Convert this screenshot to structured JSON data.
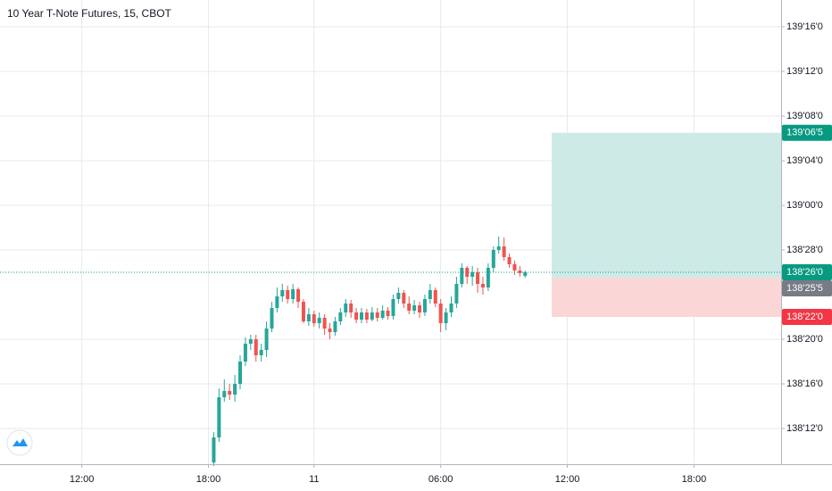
{
  "chart_data": {
    "type": "candlestick",
    "title": "10 Year T-Note Futures, 15, CBOT",
    "up_color": "#26a69a",
    "down_color": "#ef5350",
    "grid": true,
    "categories": [
      null,
      null,
      null,
      null,
      null,
      null,
      null,
      null,
      null,
      null,
      null,
      null,
      null,
      null,
      null,
      "12:00",
      null,
      null,
      null,
      null,
      null,
      null,
      null,
      null,
      null,
      null,
      null,
      null,
      null,
      null,
      null,
      null,
      null,
      null,
      null,
      null,
      null,
      null,
      null,
      "18:00",
      null,
      null,
      null,
      null,
      null,
      null,
      null,
      null,
      null,
      null,
      null,
      null,
      null,
      null,
      null,
      null,
      null,
      null,
      null,
      "11",
      null,
      null,
      null,
      null,
      null,
      null,
      null,
      null,
      null,
      null,
      null,
      null,
      null,
      null,
      null,
      null,
      null,
      null,
      null,
      null,
      null,
      null,
      null,
      "06:00",
      null,
      null,
      null,
      null,
      null,
      null,
      null,
      null,
      null,
      null,
      null,
      null,
      null,
      null,
      null,
      null,
      null,
      null,
      null,
      null,
      null,
      null,
      null,
      "12:00",
      null,
      null,
      null,
      null,
      null,
      null,
      null,
      null,
      null,
      null,
      null,
      null,
      null,
      null,
      null,
      null,
      null,
      null,
      null,
      null,
      null,
      null,
      null,
      "18:00",
      null,
      null,
      null,
      null,
      null,
      null,
      null,
      null,
      null,
      null,
      null,
      null,
      null,
      null,
      null,
      null
    ],
    "open": [
      null,
      null,
      null,
      null,
      null,
      null,
      null,
      null,
      null,
      null,
      null,
      null,
      null,
      null,
      null,
      null,
      null,
      null,
      null,
      null,
      null,
      null,
      null,
      null,
      null,
      null,
      null,
      null,
      null,
      null,
      null,
      null,
      null,
      null,
      null,
      null,
      null,
      null,
      null,
      null,
      138.28,
      138.35,
      138.4625,
      138.48,
      138.47,
      138.5,
      138.5625,
      138.6125,
      138.625,
      138.58,
      138.595,
      138.655,
      138.7125,
      138.745,
      138.7625,
      138.7375,
      138.765,
      138.73,
      138.675,
      138.695,
      138.67,
      138.685,
      138.655,
      138.645,
      138.675,
      138.7,
      138.725,
      138.7,
      138.68,
      138.7,
      138.68,
      138.7,
      138.685,
      138.705,
      138.69,
      138.7375,
      138.755,
      138.725,
      138.705,
      138.72,
      138.7,
      138.7375,
      138.7625,
      138.725,
      138.67,
      138.7,
      138.725,
      138.78,
      138.825,
      138.8,
      138.8125,
      138.78,
      138.77,
      138.825,
      138.875,
      138.885,
      138.855,
      138.835,
      138.8175,
      138.8025,
      null,
      null,
      null,
      null,
      null,
      null,
      null,
      null,
      null,
      null,
      null,
      null,
      null,
      null,
      null,
      null,
      null,
      null,
      null,
      null,
      null,
      null,
      null,
      null,
      null,
      null,
      null,
      null,
      null,
      null,
      null,
      null,
      null,
      null,
      null,
      null,
      null,
      null,
      null,
      null,
      null,
      null,
      null,
      null,
      null,
      null,
      null,
      null
    ],
    "high": [
      null,
      null,
      null,
      null,
      null,
      null,
      null,
      null,
      null,
      null,
      null,
      null,
      null,
      null,
      null,
      null,
      null,
      null,
      null,
      null,
      null,
      null,
      null,
      null,
      null,
      null,
      null,
      null,
      null,
      null,
      null,
      null,
      null,
      null,
      null,
      null,
      null,
      null,
      null,
      null,
      138.365,
      138.4875,
      138.5125,
      138.5,
      138.525,
      138.58,
      138.63,
      138.6375,
      138.6375,
      138.6125,
      138.675,
      138.73,
      138.77,
      138.78,
      138.775,
      138.78,
      138.77,
      138.7375,
      138.7125,
      138.705,
      138.7,
      138.695,
      138.67,
      138.6875,
      138.7125,
      138.7375,
      138.735,
      138.7125,
      138.7125,
      138.71,
      138.715,
      138.7125,
      138.72,
      138.715,
      138.75,
      138.77,
      138.7625,
      138.745,
      138.735,
      138.73,
      138.75,
      138.78,
      138.77,
      138.7375,
      138.7125,
      138.745,
      138.8,
      138.8375,
      138.83,
      138.83,
      138.825,
      138.8,
      138.8375,
      138.885,
      138.9125,
      138.91,
      138.865,
      138.845,
      138.83,
      138.8175,
      null,
      null,
      null,
      null,
      null,
      null,
      null,
      null,
      null,
      null,
      null,
      null,
      null,
      null,
      null,
      null,
      null,
      null,
      null,
      null,
      null,
      null,
      null,
      null,
      null,
      null,
      null,
      null,
      null,
      null,
      null,
      null,
      null,
      null,
      null,
      null,
      null,
      null,
      null,
      null,
      null,
      null,
      null,
      null,
      null,
      null,
      null,
      null
    ],
    "low": [
      null,
      null,
      null,
      null,
      null,
      null,
      null,
      null,
      null,
      null,
      null,
      null,
      null,
      null,
      null,
      null,
      null,
      null,
      null,
      null,
      null,
      null,
      null,
      null,
      null,
      null,
      null,
      null,
      null,
      null,
      null,
      null,
      null,
      null,
      null,
      null,
      null,
      null,
      null,
      null,
      138.27,
      138.3375,
      138.45,
      138.455,
      138.45,
      138.485,
      138.55,
      138.595,
      138.5625,
      138.5625,
      138.575,
      138.645,
      138.7,
      138.73,
      138.725,
      138.725,
      138.7125,
      138.67,
      138.6625,
      138.66,
      138.655,
      138.6375,
      138.625,
      138.635,
      138.665,
      138.6875,
      138.685,
      138.67,
      138.67,
      138.67,
      138.675,
      138.675,
      138.68,
      138.68,
      138.68,
      138.725,
      138.7125,
      138.695,
      138.695,
      138.685,
      138.69,
      138.725,
      138.715,
      138.645,
      138.65,
      138.6875,
      138.7125,
      138.77,
      138.78,
      138.775,
      138.755,
      138.75,
      138.76,
      138.8125,
      138.865,
      138.845,
      138.825,
      138.805,
      138.8,
      138.7975,
      null,
      null,
      null,
      null,
      null,
      null,
      null,
      null,
      null,
      null,
      null,
      null,
      null,
      null,
      null,
      null,
      null,
      null,
      null,
      null,
      null,
      null,
      null,
      null,
      null,
      null,
      null,
      null,
      null,
      null,
      null,
      null,
      null,
      null,
      null,
      null,
      null,
      null,
      null,
      null,
      null,
      null,
      null,
      null,
      null,
      null,
      null,
      null
    ],
    "close": [
      null,
      null,
      null,
      null,
      null,
      null,
      null,
      null,
      null,
      null,
      null,
      null,
      null,
      null,
      null,
      null,
      null,
      null,
      null,
      null,
      null,
      null,
      null,
      null,
      null,
      null,
      null,
      null,
      null,
      null,
      null,
      null,
      null,
      null,
      null,
      null,
      null,
      null,
      null,
      null,
      138.35,
      138.4625,
      138.48,
      138.47,
      138.5,
      138.5625,
      138.6125,
      138.625,
      138.58,
      138.595,
      138.655,
      138.7125,
      138.745,
      138.7625,
      138.7375,
      138.765,
      138.73,
      138.675,
      138.695,
      138.67,
      138.685,
      138.655,
      138.645,
      138.675,
      138.7,
      138.725,
      138.7,
      138.68,
      138.7,
      138.68,
      138.7,
      138.685,
      138.705,
      138.69,
      138.7375,
      138.755,
      138.725,
      138.705,
      138.72,
      138.7,
      138.7375,
      138.7625,
      138.725,
      138.67,
      138.7,
      138.725,
      138.78,
      138.825,
      138.8,
      138.8125,
      138.78,
      138.77,
      138.825,
      138.875,
      138.885,
      138.855,
      138.835,
      138.8175,
      138.81,
      138.8125,
      null,
      null,
      null,
      null,
      null,
      null,
      null,
      null,
      null,
      null,
      null,
      null,
      null,
      null,
      null,
      null,
      null,
      null,
      null,
      null,
      null,
      null,
      null,
      null,
      null,
      null,
      null,
      null,
      null,
      null,
      null,
      null,
      null,
      null,
      null,
      null,
      null,
      null,
      null,
      null,
      null,
      null,
      null,
      null,
      null,
      null,
      null,
      null
    ],
    "ylim": [
      138.275,
      139.575
    ],
    "yticks": [
      {
        "value": 139.5,
        "label": "139'16'0"
      },
      {
        "value": 139.375,
        "label": "139'12'0"
      },
      {
        "value": 139.25,
        "label": "139'08'0"
      },
      {
        "value": 139.125,
        "label": "139'04'0"
      },
      {
        "value": 139,
        "label": "139'00'0"
      },
      {
        "value": 138.875,
        "label": "138'28'0"
      },
      {
        "value": 138.625,
        "label": "138'20'0"
      },
      {
        "value": 138.5,
        "label": "138'16'0"
      },
      {
        "value": 138.375,
        "label": "138'12'0"
      }
    ],
    "position": {
      "target": {
        "value": 139.203125,
        "label": "139'06'5",
        "color": "#089981",
        "zone_color": "#cdeae7"
      },
      "entry": {
        "value": 138.796875,
        "label": "138'25'5",
        "color": "#787b86"
      },
      "stop": {
        "value": 138.6875,
        "label": "138'22'0",
        "color": "#f23645",
        "zone_color": "#fbd6d7"
      }
    },
    "last_price": {
      "value": 138.8125,
      "label": "138'26'0",
      "color": "#089981"
    }
  }
}
